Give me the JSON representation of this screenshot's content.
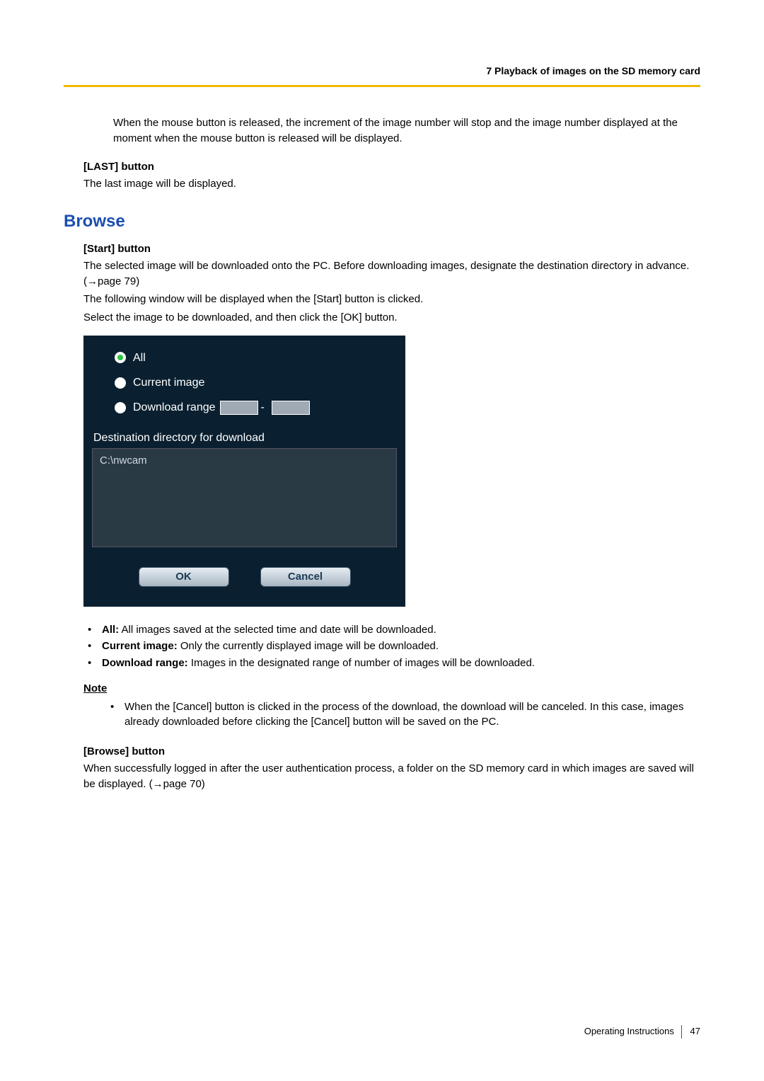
{
  "header": {
    "chapter": "7  Playback of images on the SD memory card"
  },
  "intro": {
    "text": "When the mouse button is released, the increment of the image number will stop and the image number displayed at the moment when the mouse button is released will be displayed."
  },
  "last_btn": {
    "heading": "[LAST] button",
    "desc": "The last image will be displayed."
  },
  "browse_section": {
    "title": "Browse"
  },
  "start_btn": {
    "heading": "[Start] button",
    "line1a": "The selected image will be downloaded onto the PC. Before downloading images, designate the destination directory in advance. (",
    "line1_arrow": "→",
    "line1b": "page 79)",
    "line2": "The following window will be displayed when the [Start] button is clicked.",
    "line3": "Select the image to be downloaded, and then click the [OK] button."
  },
  "dialog": {
    "radio_all": "All",
    "radio_current": "Current image",
    "radio_range": "Download range",
    "range_sep": "-",
    "dest_label": "Destination directory for download",
    "dest_path": "C:\\nwcam",
    "ok": "OK",
    "cancel": "Cancel"
  },
  "options": {
    "all_label": "All:",
    "all_text": " All images saved at the selected time and date will be downloaded.",
    "current_label": "Current image:",
    "current_text": " Only the currently displayed image will be downloaded.",
    "range_label": "Download range:",
    "range_text": " Images in the designated range of number of images will be downloaded."
  },
  "note": {
    "heading": "Note",
    "text": "When the [Cancel] button is clicked in the process of the download, the download will be canceled. In this case, images already downloaded before clicking the [Cancel] button will be saved on the PC."
  },
  "browse_btn": {
    "heading": "[Browse] button",
    "text_a": "When successfully logged in after the user authentication process, a folder on the SD memory card in which images are saved will be displayed. (",
    "arrow": "→",
    "text_b": "page 70)"
  },
  "footer": {
    "label": "Operating Instructions",
    "page": "47"
  }
}
